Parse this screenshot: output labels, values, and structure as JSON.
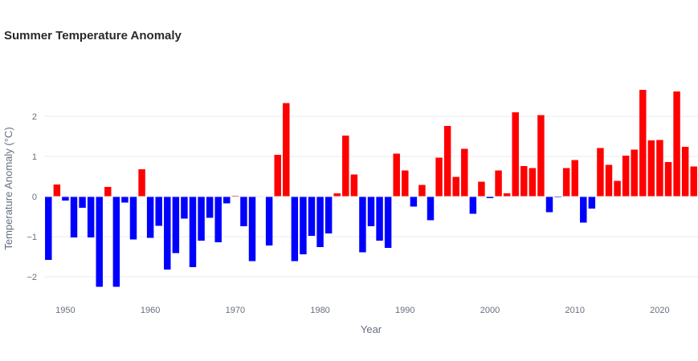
{
  "chart_data": {
    "type": "bar",
    "title": "Summer Temperature Anomaly",
    "xlabel": "Year",
    "ylabel": "Temperature Anomaly (°C)",
    "ylim": [
      -2.5,
      2.9
    ],
    "xlim": [
      1947.5,
      2024.5
    ],
    "grid": true,
    "colors": {
      "positive": "#ff0000",
      "negative": "#0000ff"
    },
    "x_ticks": [
      1950,
      1960,
      1970,
      1980,
      1990,
      2000,
      2010,
      2020
    ],
    "y_ticks": [
      -2,
      -1,
      0,
      1,
      2
    ],
    "years": [
      1948,
      1949,
      1950,
      1951,
      1952,
      1953,
      1954,
      1955,
      1956,
      1957,
      1958,
      1959,
      1960,
      1961,
      1962,
      1963,
      1964,
      1965,
      1966,
      1967,
      1968,
      1969,
      1970,
      1971,
      1972,
      1973,
      1974,
      1975,
      1976,
      1977,
      1978,
      1979,
      1980,
      1981,
      1982,
      1983,
      1984,
      1985,
      1986,
      1987,
      1988,
      1989,
      1990,
      1991,
      1992,
      1993,
      1994,
      1995,
      1996,
      1997,
      1998,
      1999,
      2000,
      2001,
      2002,
      2003,
      2004,
      2005,
      2006,
      2007,
      2008,
      2009,
      2010,
      2011,
      2012,
      2013,
      2014,
      2015,
      2016,
      2017,
      2018,
      2019,
      2020,
      2021,
      2022,
      2023,
      2024
    ],
    "values": [
      -1.58,
      0.3,
      -0.1,
      -1.02,
      -0.28,
      -1.02,
      -2.25,
      0.24,
      -2.25,
      -0.15,
      -1.07,
      0.68,
      -1.03,
      -0.73,
      -1.82,
      -1.41,
      -0.55,
      -1.76,
      -1.1,
      -0.53,
      -1.14,
      -0.17,
      0.02,
      -0.74,
      -1.61,
      0.01,
      -1.22,
      1.04,
      2.33,
      -1.61,
      -1.44,
      -0.98,
      -1.26,
      -0.92,
      0.08,
      1.52,
      0.55,
      -1.39,
      -0.74,
      -1.1,
      -1.28,
      1.07,
      0.65,
      -0.25,
      0.29,
      -0.59,
      0.97,
      1.76,
      0.49,
      1.19,
      -0.43,
      0.37,
      -0.04,
      0.65,
      0.08,
      2.1,
      0.76,
      0.71,
      2.03,
      -0.39,
      -0.02,
      0.71,
      0.91,
      -0.65,
      -0.3,
      1.21,
      0.79,
      0.39,
      1.02,
      1.17,
      2.66,
      1.4,
      1.41,
      0.86,
      2.62,
      1.24,
      0.75
    ]
  }
}
